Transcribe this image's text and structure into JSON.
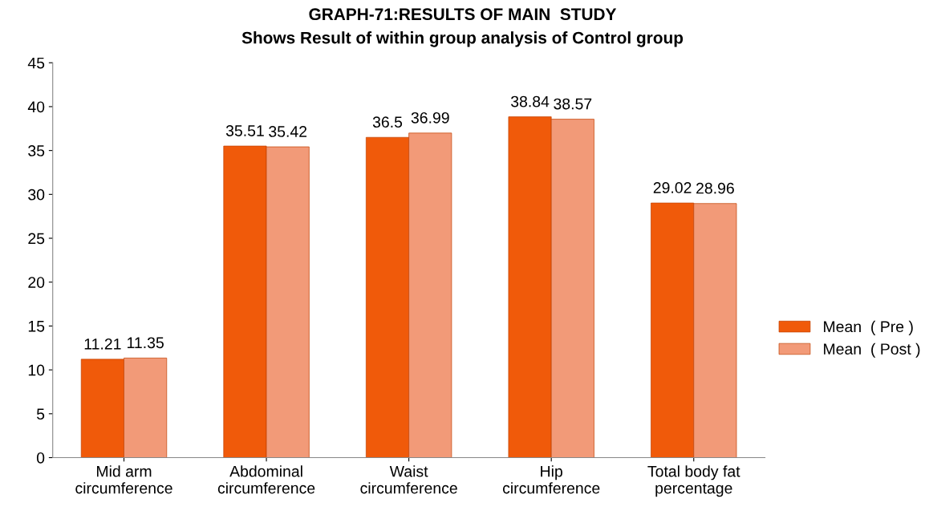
{
  "chart_data": {
    "type": "bar",
    "title": "GRAPH-71:RESULTS OF MAIN  STUDY",
    "subtitle": "Shows Result of within group analysis of Control group",
    "categories": [
      "Mid arm\ncircumference",
      "Abdominal\ncircumference",
      "Waist\ncircumference",
      "Hip\ncircumference",
      "Total body fat\npercentage"
    ],
    "series": [
      {
        "name": "Mean  ( Pre )",
        "color": "#f05a0a",
        "values": [
          11.21,
          35.51,
          36.5,
          38.84,
          29.02
        ]
      },
      {
        "name": "Mean  ( Post )",
        "color": "#f29a78",
        "values": [
          11.35,
          35.42,
          36.99,
          38.57,
          28.96
        ]
      }
    ],
    "ylim": [
      0,
      45
    ],
    "yticks": [
      0,
      5,
      10,
      15,
      20,
      25,
      30,
      35,
      40,
      45
    ],
    "data_labels": true,
    "legend": "right",
    "grid": false
  }
}
